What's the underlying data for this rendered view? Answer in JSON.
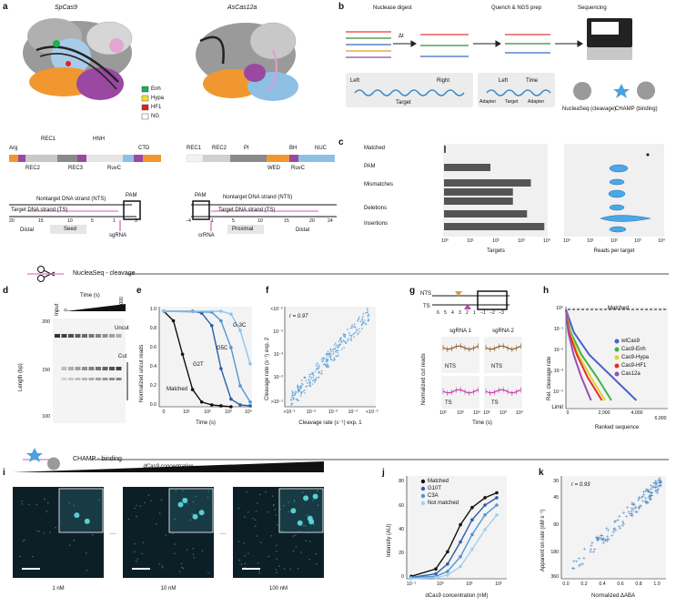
{
  "panels": {
    "a": {
      "label": "a",
      "sp_title": "SpCas9",
      "as_title": "AsCas12a",
      "legend": [
        {
          "label": "Enh",
          "color": "#19b24b"
        },
        {
          "label": "Hypa",
          "color": "#f2e233"
        },
        {
          "label": "HF1",
          "color": "#e3211c"
        },
        {
          "label": "NG",
          "color": "#ffffff"
        }
      ],
      "sp_domains_top": [
        "Arg",
        "REC1",
        "HNH",
        "CTD"
      ],
      "sp_domains_bot": [
        "REC2",
        "REC3",
        "RuvC"
      ],
      "as_domains_top": [
        "REC1",
        "REC2",
        "PI",
        "BH",
        "NUC"
      ],
      "as_domains_bot": [
        "WED",
        "RuvC"
      ],
      "sp_strands": {
        "nts": "Nontarget DNA strand (NTS)",
        "ts": "Target DNA strand (TS)",
        "pam": "PAM",
        "ticks": [
          "20",
          "15",
          "10",
          "5",
          "1",
          "3"
        ],
        "regions": [
          "Distal",
          "Seed"
        ],
        "guide": "sgRNA"
      },
      "as_strands": {
        "nts": "Nontarget DNA strand (NTS)",
        "ts": "Target DNA strand (TS)",
        "pam": "PAM",
        "ticks": [
          "−4",
          "1",
          "5",
          "10",
          "15",
          "20",
          "24"
        ],
        "regions": [
          "Proximal",
          "Distal"
        ],
        "guide": "crRNA"
      }
    },
    "b": {
      "label": "b",
      "steps": [
        "Nuclease digest",
        "Quench & NGS prep",
        "Sequencing"
      ],
      "dt": "Δt",
      "lib": {
        "left": "Left",
        "right": "Right",
        "bc": "BC",
        "target": "Target"
      },
      "prod": {
        "left": "Left",
        "time": "Time",
        "bc": "BC",
        "adapter": "Adapter",
        "target": "Target"
      },
      "outputs": [
        "NucleaSeq (cleavage)",
        "CHAMP (binding)"
      ]
    },
    "c": {
      "label": "c",
      "rows": [
        "Matched",
        "PAM",
        "Mismatches",
        "Deletions",
        "Insertions"
      ],
      "targets_xlabel": "Targets",
      "reads_xlabel": "Reads per target",
      "ticks": [
        "10⁰",
        "10¹",
        "10²",
        "10³",
        "10⁴"
      ]
    },
    "nuclea_title": "NucleaSeq - cleavage",
    "champ_title": "CHAMP - binding",
    "d": {
      "label": "d",
      "ylabel": "Length (bp)",
      "input": "Input",
      "time_label": "Time (s)",
      "t0": "0",
      "tmax": "60,000",
      "uncut": "Uncut",
      "cut": "Cut",
      "yticks": [
        "200",
        "150",
        "100"
      ]
    },
    "e": {
      "label": "e",
      "ylabel": "Normalized uncut reads",
      "xlabel": "Time (s)",
      "curves": [
        "Matched",
        "G2T",
        "G5C",
        "G-3C"
      ],
      "yticks": [
        "1.0",
        "0.8",
        "0.6",
        "0.4",
        "0.2",
        "0.0"
      ],
      "xticks": [
        "0",
        "10¹",
        "10²",
        "10³",
        "10⁴"
      ]
    },
    "f": {
      "label": "f",
      "r": "r = 0.97",
      "ylabel": "Cleavage rate (s⁻¹) exp. 2",
      "xlabel": "Cleavage rate (s⁻¹) exp. 1",
      "ticks": [
        ">10⁻¹",
        "10⁻²",
        "10⁻³",
        "10⁻⁴",
        "<10⁻⁵"
      ]
    },
    "g": {
      "label": "g",
      "nts": "NTS",
      "ts": "TS",
      "pos": [
        "6",
        "5",
        "4",
        "3",
        "2",
        "1",
        "−1",
        "−2",
        "−3"
      ],
      "cols": [
        "sgRNA 1",
        "sgRNA 2"
      ],
      "ylabel": "Normalized cut reads",
      "xlabel": "Time (s)",
      "xticks": [
        "10²",
        "10³",
        "10⁴"
      ]
    },
    "h": {
      "label": "h",
      "matched": "Matched",
      "ylabel": "Rel. cleavage rate",
      "xlabel": "Ranked sequence",
      "limit": "Limit",
      "yticks": [
        "10⁰",
        "10⁻¹",
        "10⁻²",
        "10⁻³",
        "10⁻⁴"
      ],
      "xticks": [
        "0",
        "2,000",
        "4,000",
        "6,000"
      ],
      "legend": [
        {
          "label": "wtCas9",
          "color": "#4a63c8"
        },
        {
          "label": "Cas9-Enh",
          "color": "#3bb34a"
        },
        {
          "label": "Cas9-Hypa",
          "color": "#e6cf2a"
        },
        {
          "label": "Cas9-HF1",
          "color": "#e0302a"
        },
        {
          "label": "Cas12a",
          "color": "#9b4fb0"
        }
      ]
    },
    "i": {
      "label": "i",
      "title": "dCas9 concentration",
      "concs": [
        "1 nM",
        "10 nM",
        "100 nM"
      ],
      "dots": "…"
    },
    "j": {
      "label": "j",
      "legend": [
        "Matched",
        "G10T",
        "C3A",
        "Not matched"
      ],
      "ylabel": "Intensity (AU)",
      "xlabel": "dCas9 concentration (nM)",
      "yticks": [
        "80",
        "60",
        "40",
        "20",
        "0"
      ],
      "xticks": [
        "10⁻¹",
        "10⁰",
        "10¹",
        "10²"
      ]
    },
    "k": {
      "label": "k",
      "r": "r = 0.93",
      "ylabel": "Apparent on rate (nM s⁻¹)",
      "xlabel": "Normalized ΔABA",
      "yticks": [
        "30",
        "45",
        "90",
        "180",
        "360"
      ],
      "xticks": [
        "0.0",
        "0.2",
        "0.4",
        "0.6",
        "0.8",
        "1.0"
      ]
    }
  },
  "chart_data": [
    {
      "type": "bar",
      "panel": "c",
      "title": "",
      "xlabel": "Targets",
      "scale": "log",
      "categories": [
        "Matched",
        "PAM",
        "Mismatches",
        "Mismatches",
        "Mismatches",
        "Deletions",
        "Insertions"
      ],
      "values": [
        1,
        64,
        2400,
        480,
        480,
        1700,
        8000
      ]
    },
    {
      "type": "line",
      "panel": "e",
      "xlabel": "Time (s)",
      "ylabel": "Normalized uncut reads",
      "ylim": [
        0,
        1.0
      ],
      "series": [
        {
          "name": "Matched",
          "color": "#111111",
          "x": [
            0,
            1,
            3,
            10,
            30,
            100,
            300,
            1000
          ],
          "y": [
            1.0,
            0.9,
            0.55,
            0.18,
            0.05,
            0.02,
            0.01,
            0.0
          ]
        },
        {
          "name": "G2T",
          "color": "#2a5ea8",
          "x": [
            0,
            10,
            30,
            100,
            300,
            1000,
            3000,
            10000
          ],
          "y": [
            1.0,
            1.0,
            0.98,
            0.85,
            0.4,
            0.08,
            0.02,
            0.01
          ]
        },
        {
          "name": "G5C",
          "color": "#4f95d6",
          "x": [
            0,
            100,
            300,
            1000,
            3000,
            10000
          ],
          "y": [
            1.0,
            0.99,
            0.9,
            0.62,
            0.22,
            0.05
          ]
        },
        {
          "name": "G-3C",
          "color": "#8cc4ec",
          "x": [
            0,
            300,
            1000,
            3000,
            10000
          ],
          "y": [
            1.0,
            1.0,
            0.97,
            0.8,
            0.45
          ]
        }
      ]
    },
    {
      "type": "line",
      "panel": "h",
      "xlabel": "Ranked sequence",
      "ylabel": "Rel. cleavage rate",
      "series": [
        {
          "name": "wtCas9",
          "x": [
            0,
            500,
            1500,
            3000,
            4500
          ],
          "y": [
            1,
            0.1,
            0.01,
            0.001,
            0.0001
          ]
        },
        {
          "name": "Cas9-Enh",
          "x": [
            0,
            300,
            1000,
            2000,
            2900
          ],
          "y": [
            1,
            0.1,
            0.01,
            0.001,
            0.0001
          ]
        },
        {
          "name": "Cas9-Hypa",
          "x": [
            0,
            250,
            800,
            1600,
            2500
          ],
          "y": [
            1,
            0.1,
            0.01,
            0.001,
            0.0001
          ]
        },
        {
          "name": "Cas9-HF1",
          "x": [
            0,
            200,
            700,
            1400,
            2300
          ],
          "y": [
            1,
            0.1,
            0.01,
            0.001,
            0.0001
          ]
        },
        {
          "name": "Cas12a",
          "x": [
            0,
            150,
            500,
            1000,
            1600
          ],
          "y": [
            1,
            0.1,
            0.01,
            0.001,
            0.0001
          ]
        }
      ]
    },
    {
      "type": "line",
      "panel": "j",
      "xlabel": "dCas9 concentration (nM)",
      "ylabel": "Intensity (AU)",
      "ylim": [
        0,
        80
      ],
      "series": [
        {
          "name": "Matched",
          "color": "#111111",
          "x": [
            0.1,
            1,
            3,
            10,
            30,
            100,
            300
          ],
          "y": [
            2,
            8,
            22,
            44,
            58,
            66,
            70
          ]
        },
        {
          "name": "G10T",
          "color": "#2a5ea8",
          "x": [
            0.1,
            1,
            3,
            10,
            30,
            100,
            300
          ],
          "y": [
            1,
            4,
            12,
            30,
            48,
            60,
            66
          ]
        },
        {
          "name": "C3A",
          "color": "#4f95d6",
          "x": [
            0.1,
            1,
            3,
            10,
            30,
            100,
            300
          ],
          "y": [
            1,
            2,
            6,
            18,
            36,
            52,
            60
          ]
        },
        {
          "name": "Not matched",
          "color": "#9fd0f0",
          "x": [
            0.1,
            1,
            3,
            10,
            30,
            100,
            300
          ],
          "y": [
            0,
            1,
            3,
            10,
            24,
            40,
            52
          ]
        }
      ]
    }
  ]
}
